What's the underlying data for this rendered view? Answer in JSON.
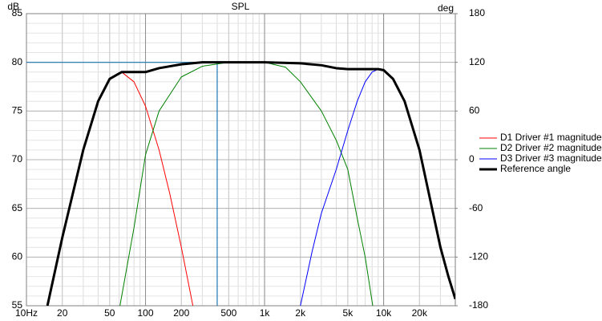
{
  "chart_data": {
    "type": "line",
    "title": "SPL",
    "ylabel": "dB",
    "y2label": "deg",
    "xscale": "log",
    "xlim": [
      10,
      40000
    ],
    "xticks": [
      {
        "value": 10,
        "label": "10Hz"
      },
      20,
      50,
      100,
      200,
      500,
      {
        "value": 1000,
        "label": "1k"
      },
      {
        "value": 2000,
        "label": "2k"
      },
      {
        "value": 5000,
        "label": "5k"
      },
      {
        "value": 10000,
        "label": "10k"
      },
      {
        "value": 20000,
        "label": "20k"
      }
    ],
    "ylim": [
      55,
      85
    ],
    "yticks": [
      55,
      60,
      65,
      70,
      75,
      80,
      85
    ],
    "y2lim": [
      -180,
      180
    ],
    "y2ticks": [
      -180,
      -120,
      -60,
      0,
      60,
      120,
      180
    ],
    "grid": true,
    "legend": "right",
    "cursor": {
      "x": 400,
      "y": 80,
      "color": "#1f77b4"
    },
    "series": [
      {
        "name": "D1 Driver #1 magnitude",
        "color": "#ff0000",
        "width": 1,
        "x": [
          15,
          20,
          30,
          40,
          50,
          63,
          80,
          100,
          130,
          160,
          200,
          250
        ],
        "values": [
          55,
          62,
          71,
          76,
          78.3,
          79,
          78,
          75.5,
          71,
          66.5,
          61,
          55
        ]
      },
      {
        "name": "D2 Driver #2 magnitude",
        "color": "#008000",
        "width": 1,
        "x": [
          61,
          80,
          100,
          130,
          200,
          300,
          500,
          1000,
          1500,
          2000,
          3000,
          4000,
          5000,
          6000,
          7000,
          8100
        ],
        "values": [
          55,
          63,
          70.5,
          75,
          78.5,
          79.6,
          80,
          80,
          79.5,
          78,
          75,
          72,
          69,
          64,
          60,
          55
        ]
      },
      {
        "name": "D3 Driver #3 magnitude",
        "color": "#0000ff",
        "width": 1,
        "x": [
          2000,
          2500,
          3000,
          4000,
          5000,
          6000,
          7000,
          8000,
          9000,
          10000,
          12000,
          15000,
          20000,
          25000,
          30000,
          35000,
          40000
        ],
        "values": [
          55,
          60.5,
          64.5,
          69,
          73,
          76,
          78,
          79,
          79.3,
          79.2,
          78.3,
          76,
          71,
          65.5,
          61,
          58,
          55.7
        ]
      },
      {
        "name": "Reference angle",
        "color": "#000000",
        "width": 3,
        "x": [
          15,
          20,
          30,
          40,
          50,
          63,
          80,
          100,
          130,
          200,
          300,
          1000,
          2000,
          3000,
          4000,
          5000,
          7000,
          9000,
          10000,
          12000,
          15000,
          20000,
          25000,
          30000,
          35000,
          40000
        ],
        "values": [
          55,
          62,
          71,
          76,
          78.3,
          79,
          79,
          79,
          79.4,
          79.8,
          80,
          80,
          79.9,
          79.7,
          79.4,
          79.3,
          79.3,
          79.3,
          79.2,
          78.3,
          76,
          71,
          65.5,
          61,
          58,
          55.7
        ]
      }
    ]
  }
}
